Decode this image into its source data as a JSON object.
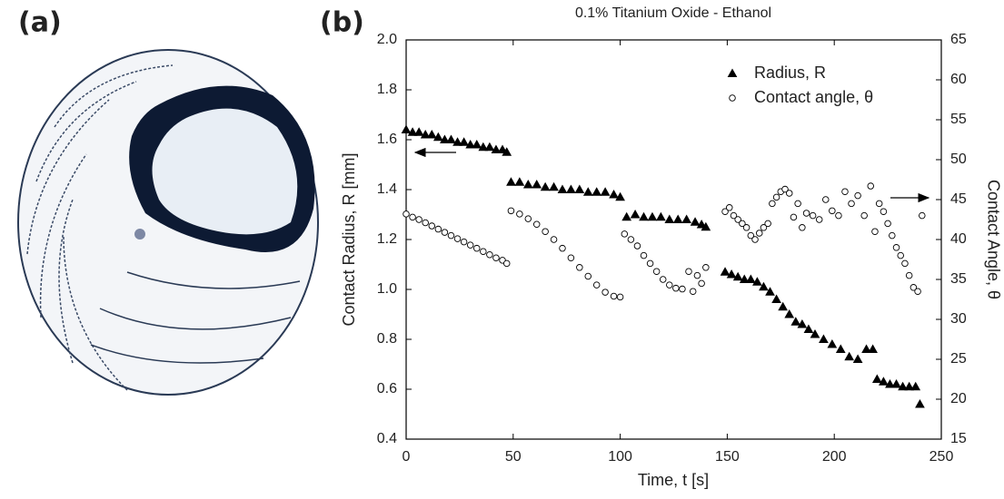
{
  "panel_labels": [
    "(a)",
    "(b)"
  ],
  "chart_data": {
    "type": "scatter",
    "title": "0.1% Titanium Oxide - Ethanol",
    "x_label": "Time, t [s]",
    "y_label": "Contact Radius, R [mm]",
    "y2_label": "Contact Angle, θ",
    "xlim": [
      0,
      250
    ],
    "xticks": [
      0,
      50,
      100,
      150,
      200,
      250
    ],
    "ylim": [
      0.4,
      2.0
    ],
    "yticks": [
      0.4,
      0.6,
      0.8,
      {
        "value": 1,
        "label": "1.0"
      },
      1.2,
      1.4,
      1.6,
      1.8,
      {
        "value": 2,
        "label": "2.0"
      }
    ],
    "y2lim": [
      15,
      65
    ],
    "y2ticks": [
      15,
      20,
      25,
      30,
      35,
      40,
      45,
      50,
      55,
      60,
      65
    ],
    "legend": "upper right",
    "grid": false,
    "series": [
      {
        "name": "Radius, R",
        "color": "#000000",
        "marker": "triangle",
        "filled": true,
        "x": [
          0,
          3,
          6,
          9,
          12,
          15,
          18,
          21,
          24,
          27,
          30,
          33,
          36,
          39,
          42,
          45,
          47,
          49,
          53,
          57,
          61,
          65,
          69,
          73,
          77,
          81,
          85,
          89,
          93,
          97,
          100,
          103,
          107,
          111,
          115,
          119,
          123,
          127,
          131,
          135,
          138,
          140,
          149,
          152,
          155,
          158,
          161,
          164,
          167,
          170,
          173,
          176,
          179,
          182,
          185,
          188,
          191,
          195,
          199,
          203,
          207,
          211,
          215,
          218,
          220,
          223,
          226,
          229,
          232,
          235,
          238,
          240
        ],
        "values": [
          1.64,
          1.63,
          1.63,
          1.62,
          1.62,
          1.61,
          1.6,
          1.6,
          1.59,
          1.59,
          1.58,
          1.58,
          1.57,
          1.57,
          1.56,
          1.56,
          1.55,
          1.43,
          1.43,
          1.42,
          1.42,
          1.41,
          1.41,
          1.4,
          1.4,
          1.4,
          1.39,
          1.39,
          1.39,
          1.38,
          1.37,
          1.29,
          1.3,
          1.29,
          1.29,
          1.29,
          1.28,
          1.28,
          1.28,
          1.27,
          1.26,
          1.25,
          1.07,
          1.06,
          1.05,
          1.04,
          1.04,
          1.03,
          1.01,
          0.99,
          0.96,
          0.93,
          0.9,
          0.87,
          0.86,
          0.84,
          0.82,
          0.8,
          0.78,
          0.76,
          0.73,
          0.72,
          0.76,
          0.76,
          0.64,
          0.63,
          0.62,
          0.62,
          0.61,
          0.61,
          0.61,
          0.54
        ]
      },
      {
        "name": "Contact angle, θ",
        "color": "#000000",
        "marker": "circle",
        "filled": false,
        "axis": "y2",
        "x": [
          0,
          3,
          6,
          9,
          12,
          15,
          18,
          21,
          24,
          27,
          30,
          33,
          36,
          39,
          42,
          45,
          47,
          49,
          53,
          57,
          61,
          65,
          69,
          73,
          77,
          81,
          85,
          89,
          93,
          97,
          100,
          102,
          105,
          108,
          111,
          114,
          117,
          120,
          123,
          126,
          129,
          132,
          134,
          136,
          138,
          140,
          149,
          151,
          153,
          155,
          157,
          159,
          161,
          163,
          165,
          167,
          169,
          171,
          173,
          175,
          177,
          179,
          181,
          183,
          185,
          187,
          190,
          193,
          196,
          199,
          202,
          205,
          208,
          211,
          214,
          217,
          219,
          221,
          223,
          225,
          227,
          229,
          231,
          233,
          235,
          237,
          239,
          241
        ],
        "values": [
          43.2,
          42.8,
          42.5,
          42.1,
          41.7,
          41.3,
          40.9,
          40.5,
          40.1,
          39.7,
          39.3,
          38.9,
          38.5,
          38.1,
          37.7,
          37.4,
          37.0,
          43.6,
          43.2,
          42.6,
          41.9,
          41.0,
          40.0,
          38.9,
          37.7,
          36.5,
          35.4,
          34.3,
          33.4,
          32.9,
          32.8,
          40.7,
          40.0,
          39.2,
          38.0,
          37.0,
          36.0,
          35.0,
          34.3,
          33.9,
          33.8,
          36.0,
          33.5,
          35.5,
          34.5,
          36.5,
          43.5,
          44.0,
          43.0,
          42.5,
          42.0,
          41.5,
          40.5,
          40.0,
          40.8,
          41.5,
          42.0,
          44.5,
          45.3,
          46.0,
          46.3,
          45.8,
          42.8,
          44.5,
          41.5,
          43.3,
          43.0,
          42.5,
          45.0,
          43.6,
          43.0,
          46.0,
          44.5,
          45.5,
          43.0,
          46.7,
          41.0,
          44.5,
          43.5,
          42.0,
          40.5,
          39.0,
          38.0,
          37.0,
          35.5,
          34.0,
          33.5,
          43.0
        ]
      }
    ]
  }
}
